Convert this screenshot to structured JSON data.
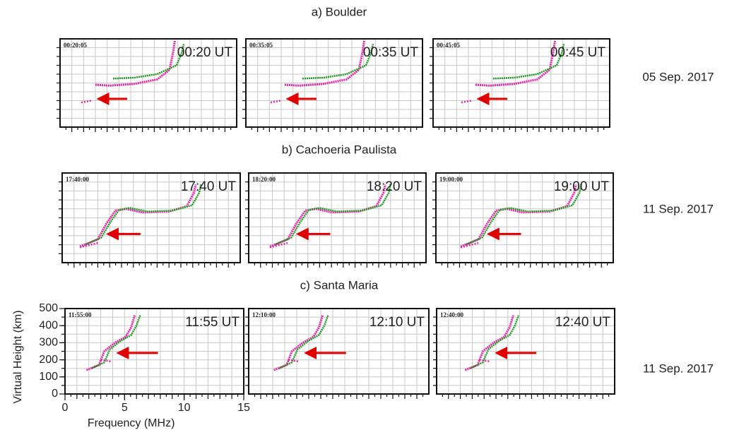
{
  "rows": [
    {
      "title": "a) Boulder",
      "date": "05 Sep. 2017",
      "panels": [
        {
          "stamp": "00:20:05",
          "time": "00:20 UT"
        },
        {
          "stamp": "00:35:05",
          "time": "00:35 UT"
        },
        {
          "stamp": "00:45:05",
          "time": "00:45 UT"
        }
      ]
    },
    {
      "title": "b) Cachoeria Paulista",
      "date": "11 Sep. 2017",
      "panels": [
        {
          "stamp": "17:40:00",
          "time": "17:40 UT"
        },
        {
          "stamp": "18:20:00",
          "time": "18:20 UT"
        },
        {
          "stamp": "19:00:00",
          "time": "19:00 UT"
        }
      ]
    },
    {
      "title": "c) Santa Maria",
      "date": "11 Sep. 2017",
      "panels": [
        {
          "stamp": "11:55:00",
          "time": "11:55 UT"
        },
        {
          "stamp": "12:10:00",
          "time": "12:10 UT"
        },
        {
          "stamp": "12:40:00",
          "time": "12:40 UT"
        }
      ]
    }
  ],
  "axes": {
    "xlabel": "Frequency (MHz)",
    "ylabel": "Virtual Height (km)",
    "xlim": [
      0,
      15
    ],
    "ylim": [
      0,
      500
    ],
    "xticks": [
      0,
      5,
      10,
      15
    ],
    "yticks": [
      0,
      100,
      200,
      300,
      400,
      500
    ]
  }
}
